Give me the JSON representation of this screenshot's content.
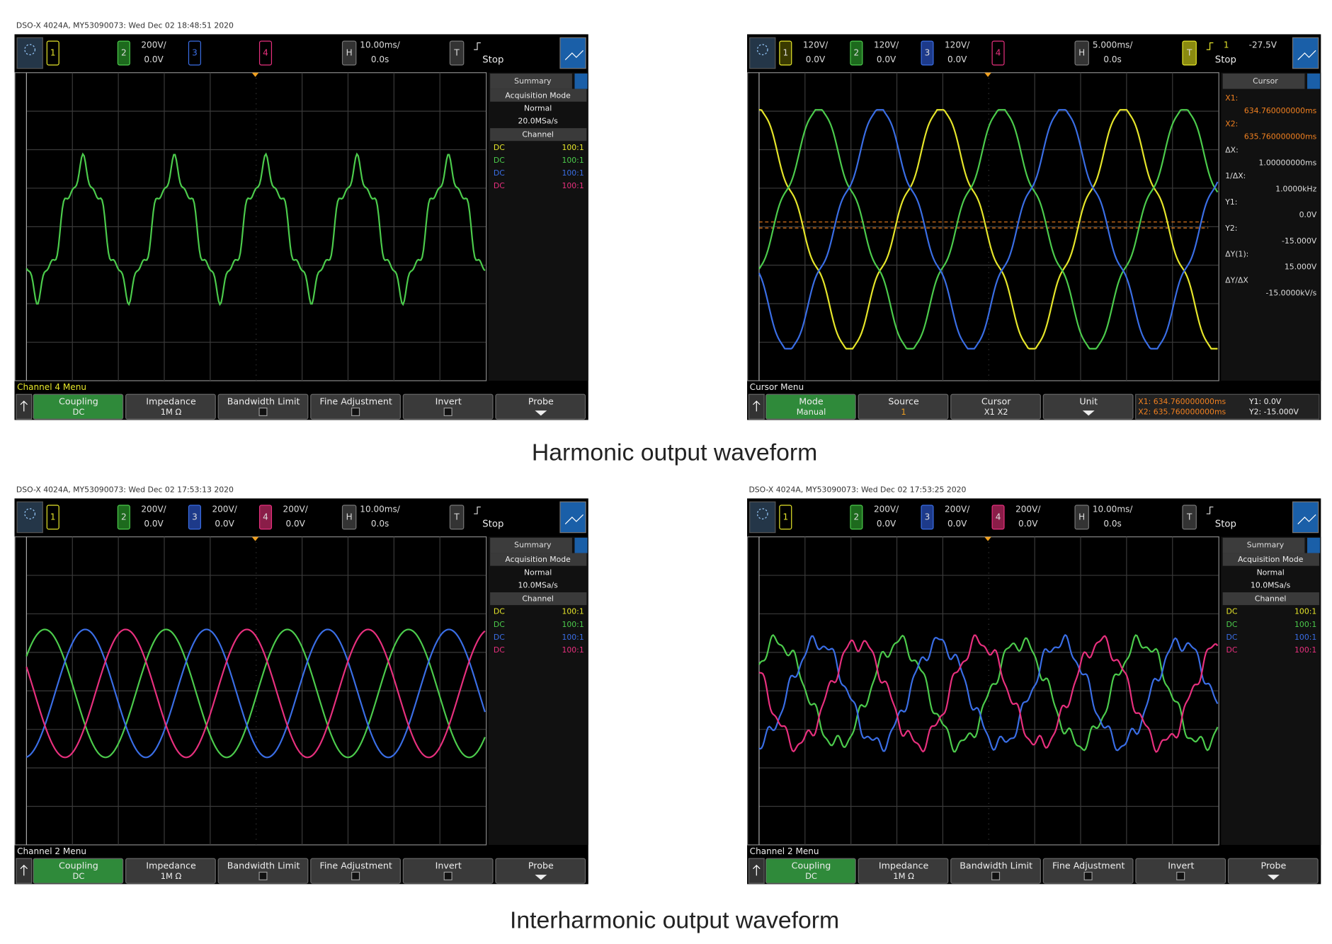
{
  "captions": [
    "Harmonic output waveform",
    "Interharmonic output waveform"
  ],
  "scopes": [
    {
      "timestamp": "DSO-X 4024A, MY53090073: Wed Dec 02 18:48:51 2020",
      "channels": [
        {
          "label": "1"
        },
        {
          "label": "2",
          "scale": "200V/",
          "offset": "0.0V"
        },
        {
          "label": "3"
        },
        {
          "label": "4"
        }
      ],
      "horizontal": {
        "label": "H",
        "scale": "10.00ms/",
        "delay": "0.0s"
      },
      "trigger": {
        "label": "T",
        "status": "Stop"
      },
      "summary": {
        "title": "Summary",
        "acq_header": "Acquisition Mode",
        "acq_mode": "Normal",
        "sample_rate": "20.0MSa/s",
        "channel_header": "Channel",
        "rows": [
          [
            "DC",
            "100:1"
          ],
          [
            "DC",
            "100:1"
          ],
          [
            "DC",
            "100:1"
          ],
          [
            "DC",
            "100:1"
          ]
        ]
      },
      "menu_title": "Channel 4 Menu",
      "softkeys": [
        {
          "label": "Coupling",
          "value": "DC"
        },
        {
          "label": "Impedance",
          "value": "1M Ω"
        },
        {
          "label": "Bandwidth Limit"
        },
        {
          "label": "Fine Adjustment"
        },
        {
          "label": "Invert"
        },
        {
          "label": "Probe"
        }
      ]
    },
    {
      "channels": [
        {
          "label": "1",
          "scale": "120V/",
          "offset": "0.0V"
        },
        {
          "label": "2",
          "scale": "120V/",
          "offset": "0.0V"
        },
        {
          "label": "3",
          "scale": "120V/",
          "offset": "0.0V"
        },
        {
          "label": "4"
        }
      ],
      "horizontal": {
        "label": "H",
        "scale": "5.000ms/",
        "delay": "0.0s"
      },
      "trigger": {
        "label": "T",
        "source": "1",
        "level": "-27.5V",
        "status": "Stop"
      },
      "cursor": {
        "title": "Cursor",
        "items": [
          [
            "X1:",
            "634.760000000ms"
          ],
          [
            "X2:",
            "635.760000000ms"
          ],
          [
            "ΔX:",
            "1.00000000ms"
          ],
          [
            "1/ΔX:",
            "1.0000kHz"
          ],
          [
            "Y1:",
            "0.0V"
          ],
          [
            "Y2:",
            "-15.000V"
          ],
          [
            "ΔY(1):",
            "15.000V"
          ],
          [
            "ΔY/ΔX",
            "-15.0000kV/s"
          ]
        ]
      },
      "menu_title": "Cursor Menu",
      "softkeys": [
        {
          "label": "Mode",
          "value": "Manual"
        },
        {
          "label": "Source",
          "value": "1"
        },
        {
          "label": "Cursor",
          "value": "X1 X2"
        },
        {
          "label": "Unit"
        }
      ],
      "readout": [
        "X1: 634.760000000ms",
        "X2: 635.760000000ms",
        "Y1: 0.0V",
        "Y2: -15.000V"
      ]
    },
    {
      "timestamp": "DSO-X 4024A, MY53090073: Wed Dec 02 17:53:13 2020",
      "channels": [
        {
          "label": "1"
        },
        {
          "label": "2",
          "scale": "200V/",
          "offset": "0.0V"
        },
        {
          "label": "3",
          "scale": "200V/",
          "offset": "0.0V"
        },
        {
          "label": "4",
          "scale": "200V/",
          "offset": "0.0V"
        }
      ],
      "horizontal": {
        "label": "H",
        "scale": "10.00ms/",
        "delay": "0.0s"
      },
      "trigger": {
        "label": "T",
        "status": "Stop"
      },
      "summary": {
        "title": "Summary",
        "acq_header": "Acquisition Mode",
        "acq_mode": "Normal",
        "sample_rate": "10.0MSa/s",
        "channel_header": "Channel",
        "rows": [
          [
            "DC",
            "100:1"
          ],
          [
            "DC",
            "100:1"
          ],
          [
            "DC",
            "100:1"
          ],
          [
            "DC",
            "100:1"
          ]
        ]
      },
      "menu_title": "Channel 2 Menu",
      "softkeys": [
        {
          "label": "Coupling",
          "value": "DC"
        },
        {
          "label": "Impedance",
          "value": "1M Ω"
        },
        {
          "label": "Bandwidth Limit"
        },
        {
          "label": "Fine Adjustment"
        },
        {
          "label": "Invert"
        },
        {
          "label": "Probe"
        }
      ]
    },
    {
      "timestamp": "DSO-X 4024A, MY53090073: Wed Dec 02 17:53:25 2020",
      "channels": [
        {
          "label": "1"
        },
        {
          "label": "2",
          "scale": "200V/",
          "offset": "0.0V"
        },
        {
          "label": "3",
          "scale": "200V/",
          "offset": "0.0V"
        },
        {
          "label": "4",
          "scale": "200V/",
          "offset": "0.0V"
        }
      ],
      "horizontal": {
        "label": "H",
        "scale": "10.00ms/",
        "delay": "0.0s"
      },
      "trigger": {
        "label": "T",
        "status": "Stop"
      },
      "summary": {
        "title": "Summary",
        "acq_header": "Acquisition Mode",
        "acq_mode": "Normal",
        "sample_rate": "10.0MSa/s",
        "channel_header": "Channel",
        "rows": [
          [
            "DC",
            "100:1"
          ],
          [
            "DC",
            "100:1"
          ],
          [
            "DC",
            "100:1"
          ],
          [
            "DC",
            "100:1"
          ]
        ]
      },
      "menu_title": "Channel 2 Menu",
      "softkeys": [
        {
          "label": "Coupling",
          "value": "DC"
        },
        {
          "label": "Impedance",
          "value": "1M Ω"
        },
        {
          "label": "Bandwidth Limit"
        },
        {
          "label": "Fine Adjustment"
        },
        {
          "label": "Invert"
        },
        {
          "label": "Probe"
        }
      ]
    }
  ]
}
